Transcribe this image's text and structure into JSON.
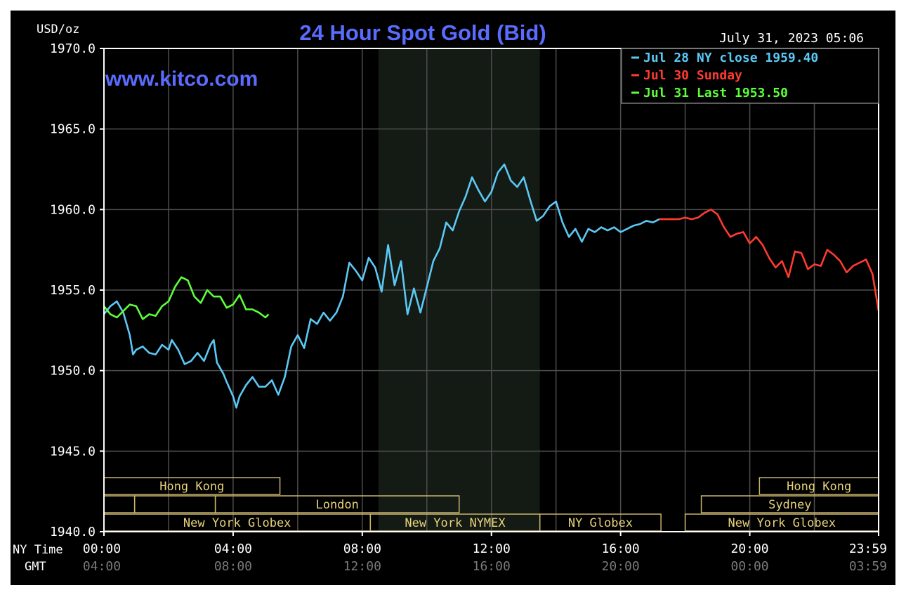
{
  "header": {
    "unit": "USD/oz",
    "title": "24 Hour Spot Gold (Bid)",
    "timestamp": "July 31, 2023 05:06",
    "watermark": "www.kitco.com"
  },
  "colors": {
    "background": "#000000",
    "frame": "#ffffff",
    "grid": "#4d4d4d",
    "title": "#5a6cff",
    "watermark": "#5a6cff",
    "jul28": "#5bc8f5",
    "jul30": "#ff3b2f",
    "jul31": "#5dff3a",
    "nymex_shade": "#141a14",
    "session_border": "#c8b46e",
    "session_text": "#e8d27a",
    "gmt_text": "#7a7a7a"
  },
  "legend": [
    {
      "key": "jul28",
      "label": "Jul 28 NY close 1959.40"
    },
    {
      "key": "jul30",
      "label": "Jul 30 Sunday"
    },
    {
      "key": "jul31",
      "label": "Jul 31 Last 1953.50"
    }
  ],
  "sessions": {
    "row1": [
      {
        "label": "Hong Kong",
        "start": 0,
        "end": 5.45
      },
      {
        "label": "Hong Kong",
        "start": 20.3,
        "end": 23.99
      }
    ],
    "row2": [
      {
        "label": "",
        "start": 0,
        "end": 0.95
      },
      {
        "label": "",
        "start": 0.95,
        "end": 3.45
      },
      {
        "label": "London",
        "start": 3.45,
        "end": 11.0
      },
      {
        "label": "Sydney",
        "start": 18.5,
        "end": 23.99
      }
    ],
    "row3": [
      {
        "label": "New York Globex",
        "start": 0,
        "end": 8.25
      },
      {
        "label": "New York NYMEX",
        "start": 8.25,
        "end": 13.5
      },
      {
        "label": "NY Globex",
        "start": 13.5,
        "end": 17.25
      },
      {
        "label": "New York Globex",
        "start": 18.0,
        "end": 23.99
      }
    ]
  },
  "axis_labels": {
    "ny_time": "NY Time",
    "gmt": "GMT"
  },
  "chart_data": {
    "type": "line",
    "ylim": [
      1940,
      1970
    ],
    "xlim": [
      0,
      23.99
    ],
    "yticks": [
      "1940.0",
      "1945.0",
      "1950.0",
      "1955.0",
      "1960.0",
      "1965.0",
      "1970.0"
    ],
    "xticks_ny": [
      "00:00",
      "04:00",
      "08:00",
      "12:00",
      "16:00",
      "20:00",
      "23:59"
    ],
    "xticks_gmt": [
      "04:00",
      "08:00",
      "12:00",
      "16:00",
      "20:00",
      "00:00",
      "03:59"
    ],
    "nymex_shade": [
      8.5,
      13.5
    ],
    "grid": true,
    "legend_position": "top-right",
    "series": [
      {
        "name": "Jul 28 NY close 1959.40",
        "key": "jul28",
        "x": [
          0.0,
          0.2,
          0.4,
          0.6,
          0.8,
          0.9,
          1.0,
          1.2,
          1.4,
          1.6,
          1.8,
          2.0,
          2.1,
          2.3,
          2.5,
          2.7,
          2.9,
          3.1,
          3.3,
          3.4,
          3.5,
          3.7,
          3.8,
          4.0,
          4.1,
          4.2,
          4.4,
          4.6,
          4.8,
          5.0,
          5.2,
          5.4,
          5.6,
          5.8,
          6.0,
          6.2,
          6.4,
          6.6,
          6.8,
          7.0,
          7.2,
          7.4,
          7.6,
          7.8,
          8.0,
          8.2,
          8.4,
          8.6,
          8.8,
          9.0,
          9.2,
          9.4,
          9.6,
          9.8,
          10.0,
          10.2,
          10.4,
          10.6,
          10.8,
          11.0,
          11.2,
          11.4,
          11.6,
          11.8,
          12.0,
          12.2,
          12.4,
          12.6,
          12.8,
          13.0,
          13.2,
          13.4,
          13.6,
          13.8,
          14.0,
          14.2,
          14.4,
          14.6,
          14.8,
          15.0,
          15.2,
          15.4,
          15.6,
          15.8,
          16.0,
          16.2,
          16.4,
          16.6,
          16.8,
          17.0,
          17.2
        ],
        "values": [
          1953.5,
          1954.0,
          1954.3,
          1953.6,
          1952.2,
          1951.0,
          1951.3,
          1951.5,
          1951.1,
          1951.0,
          1951.6,
          1951.3,
          1951.9,
          1951.3,
          1950.4,
          1950.6,
          1951.1,
          1950.6,
          1951.6,
          1951.9,
          1950.5,
          1949.8,
          1949.3,
          1948.4,
          1947.7,
          1948.4,
          1949.1,
          1949.6,
          1949.0,
          1949.0,
          1949.4,
          1948.5,
          1949.6,
          1951.5,
          1952.2,
          1951.4,
          1953.2,
          1952.9,
          1953.6,
          1953.1,
          1953.6,
          1954.6,
          1956.7,
          1956.2,
          1955.6,
          1957.0,
          1956.4,
          1954.9,
          1957.8,
          1955.3,
          1956.8,
          1953.5,
          1955.1,
          1953.6,
          1955.2,
          1956.8,
          1957.6,
          1959.2,
          1958.7,
          1959.9,
          1960.8,
          1962.0,
          1961.2,
          1960.5,
          1961.1,
          1962.3,
          1962.8,
          1961.8,
          1961.4,
          1962.0,
          1960.6,
          1959.3,
          1959.6,
          1960.2,
          1960.5,
          1959.2,
          1958.3,
          1958.8,
          1958.0,
          1958.8,
          1958.6,
          1958.9,
          1958.7,
          1958.9,
          1958.6,
          1958.8,
          1959.0,
          1959.1,
          1959.3,
          1959.2,
          1959.4
        ]
      },
      {
        "name": "Jul 30 Sunday",
        "key": "jul30",
        "x": [
          17.2,
          17.5,
          17.8,
          18.0,
          18.2,
          18.4,
          18.6,
          18.8,
          19.0,
          19.2,
          19.4,
          19.6,
          19.8,
          20.0,
          20.2,
          20.4,
          20.6,
          20.8,
          21.0,
          21.2,
          21.4,
          21.6,
          21.8,
          22.0,
          22.2,
          22.4,
          22.6,
          22.8,
          23.0,
          23.2,
          23.4,
          23.6,
          23.8,
          23.99
        ],
        "values": [
          1959.4,
          1959.4,
          1959.4,
          1959.5,
          1959.4,
          1959.5,
          1959.8,
          1960.0,
          1959.7,
          1958.9,
          1958.3,
          1958.5,
          1958.6,
          1957.9,
          1958.3,
          1957.8,
          1957.0,
          1956.4,
          1956.8,
          1955.8,
          1957.4,
          1957.3,
          1956.3,
          1956.6,
          1956.5,
          1957.5,
          1957.2,
          1956.8,
          1956.1,
          1956.5,
          1956.7,
          1956.9,
          1956.0,
          1953.7
        ]
      },
      {
        "name": "Jul 31 Last 1953.50",
        "key": "jul31",
        "x": [
          0.0,
          0.2,
          0.4,
          0.6,
          0.8,
          1.0,
          1.2,
          1.4,
          1.6,
          1.8,
          2.0,
          2.2,
          2.4,
          2.6,
          2.8,
          3.0,
          3.2,
          3.4,
          3.6,
          3.8,
          4.0,
          4.2,
          4.4,
          4.6,
          4.8,
          5.0,
          5.1
        ],
        "values": [
          1954.0,
          1953.5,
          1953.3,
          1953.7,
          1954.1,
          1954.0,
          1953.2,
          1953.5,
          1953.4,
          1954.0,
          1954.3,
          1955.2,
          1955.8,
          1955.6,
          1954.6,
          1954.2,
          1955.0,
          1954.6,
          1954.6,
          1953.9,
          1954.1,
          1954.7,
          1953.8,
          1953.8,
          1953.6,
          1953.3,
          1953.5
        ]
      }
    ]
  }
}
